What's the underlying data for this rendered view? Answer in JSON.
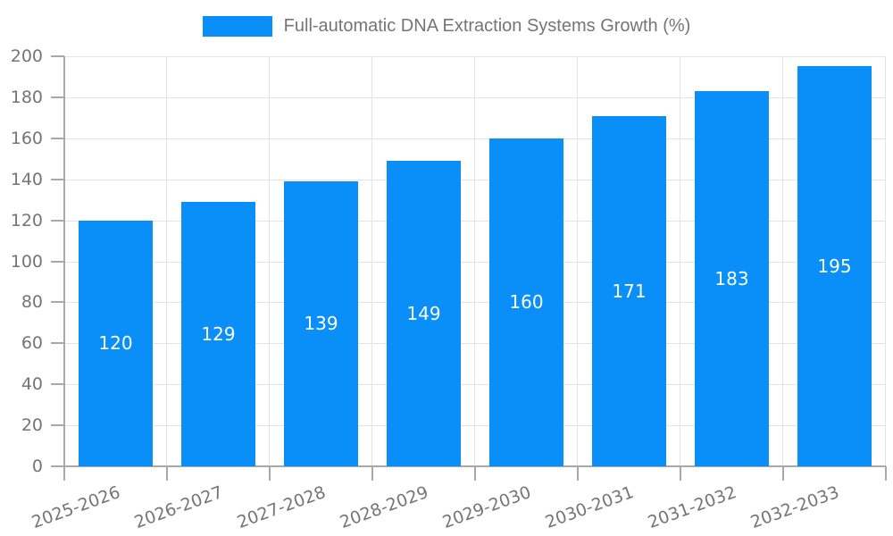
{
  "legend": {
    "label": "Full-automatic DNA Extraction Systems Growth (%)"
  },
  "chart_data": {
    "type": "bar",
    "title": "Full-automatic DNA Extraction Systems Growth (%)",
    "categories": [
      "2025-2026",
      "2026-2027",
      "2027-2028",
      "2028-2029",
      "2029-2030",
      "2030-2031",
      "2031-2032",
      "2032-2033"
    ],
    "values": [
      120,
      129,
      139,
      149,
      160,
      171,
      183,
      195
    ],
    "xlabel": "",
    "ylabel": "",
    "ylim": [
      0,
      200
    ],
    "yticks": [
      0,
      20,
      40,
      60,
      80,
      100,
      120,
      140,
      160,
      180,
      200
    ],
    "grid": true,
    "legend_position": "top",
    "x_label_rotation_deg": -20,
    "value_label_position": "inside-center",
    "colors": {
      "bar": "#0a8ff8",
      "grid": "#e3e3e3",
      "axis": "#a8a8a8",
      "tick_label": "#757575",
      "title": "#757575",
      "value_label": "#ffffff",
      "background": "#ffffff"
    }
  }
}
